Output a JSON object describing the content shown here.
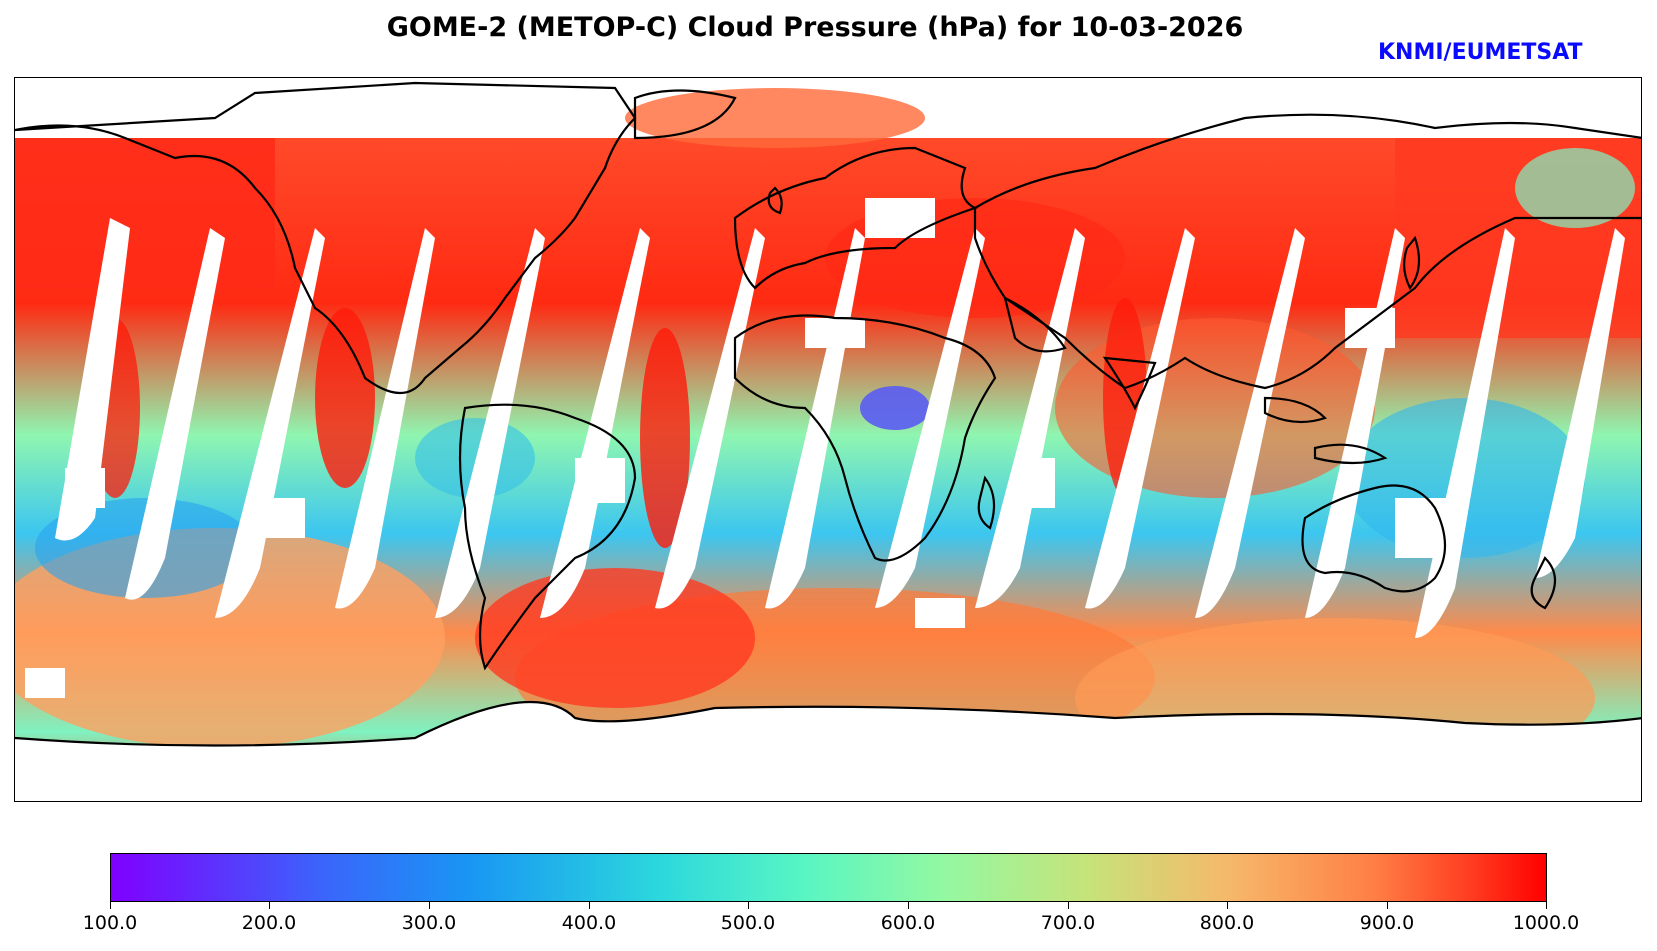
{
  "title": "GOME-2 (METOP-C) Cloud Pressure (hPa) for 10-03-2026",
  "credit": "KNMI/EUMETSAT",
  "colorbar": {
    "min": 100.0,
    "max": 1000.0,
    "tick_labels": [
      "100.0",
      "200.0",
      "300.0",
      "400.0",
      "500.0",
      "600.0",
      "700.0",
      "800.0",
      "900.0",
      "1000.0"
    ],
    "colormap": [
      "#7f00ff",
      "#1996f3",
      "#57f5c4",
      "#93f8a2",
      "#f6b86a",
      "#ff0000"
    ]
  },
  "map": {
    "projection": "plate-carree",
    "quantity": "Cloud Pressure (hPa)",
    "coastline_color": "#000000",
    "no_data_color": "#ffffff"
  }
}
